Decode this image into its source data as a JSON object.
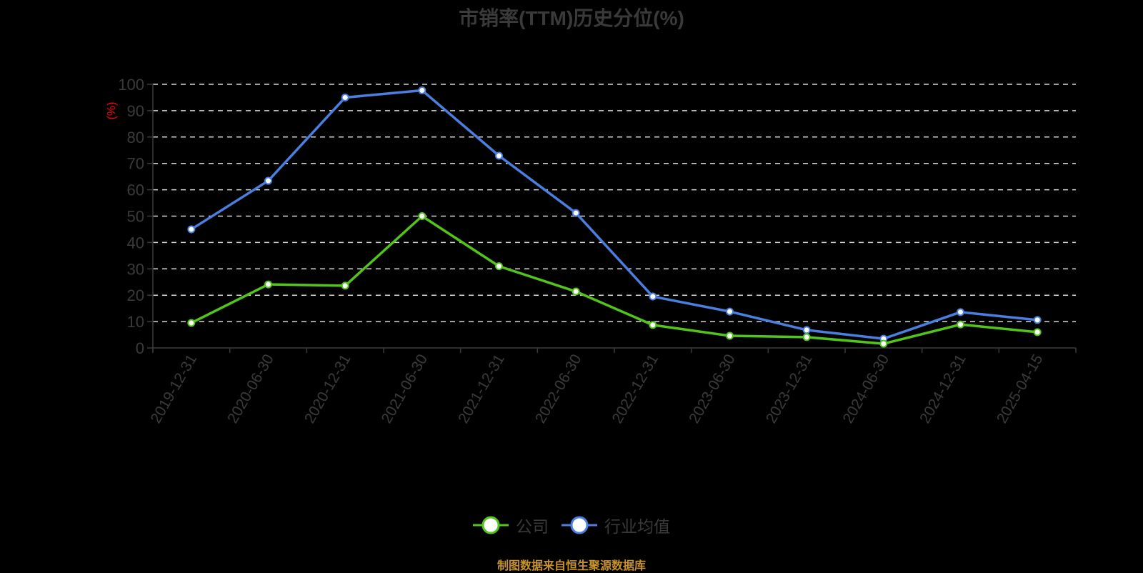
{
  "title": "市销率(TTM)历史分位(%)",
  "footer": {
    "source": "制图数据来自恒生聚源数据库"
  },
  "legend": [
    {
      "label": "公司",
      "color": "#52c41a"
    },
    {
      "label": "行业均值",
      "color": "#4a7fe0"
    }
  ],
  "chart_data": {
    "type": "line",
    "title": "市销率(TTM)历史分位(%)",
    "xlabel": "",
    "ylabel": "(%)",
    "ylabel_color": "#ff0000",
    "ylim": [
      0,
      100
    ],
    "yticks": [
      0,
      10,
      20,
      30,
      40,
      50,
      60,
      70,
      80,
      90,
      100
    ],
    "grid": true,
    "grid_style": "dashed",
    "legend_position": "bottom",
    "categories": [
      "2019-12-31",
      "2020-06-30",
      "2020-12-31",
      "2021-06-30",
      "2021-12-31",
      "2022-06-30",
      "2022-12-31",
      "2023-06-30",
      "2023-12-31",
      "2024-06-30",
      "2024-12-31",
      "2025-04-15"
    ],
    "series": [
      {
        "name": "公司",
        "color": "#52c41a",
        "values": [
          9.5,
          24.1,
          23.6,
          50.0,
          31.0,
          21.4,
          8.7,
          4.6,
          4.1,
          1.6,
          8.9,
          6.0
        ]
      },
      {
        "name": "行业均值",
        "color": "#4a7fe0",
        "values": [
          45.0,
          63.4,
          95.0,
          97.7,
          72.9,
          51.2,
          19.5,
          13.8,
          6.8,
          3.5,
          13.6,
          10.6
        ]
      }
    ]
  }
}
